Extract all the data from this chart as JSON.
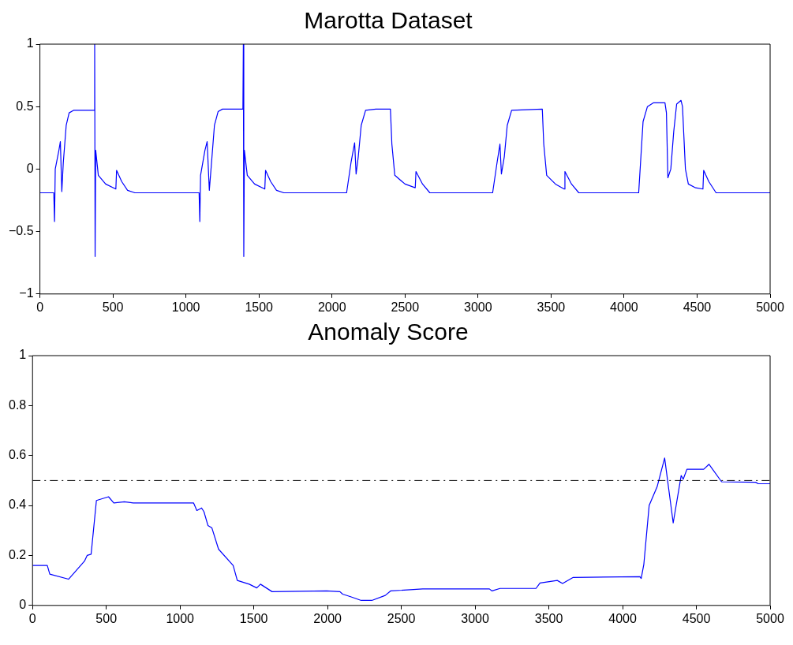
{
  "chart_data": [
    {
      "type": "line",
      "title": "Marotta Dataset",
      "xlim": [
        0,
        5000
      ],
      "xticks": [
        0,
        500,
        1000,
        1500,
        2000,
        2500,
        3000,
        3500,
        4000,
        4500,
        5000
      ],
      "ylim": [
        -1,
        1
      ],
      "yticks": [
        -1,
        -0.5,
        0,
        0.5,
        1
      ],
      "grid": false,
      "legend": false,
      "marker": "none",
      "line_style": "solid",
      "series": [
        {
          "color": "#0000ff",
          "x": [
            0,
            95,
            100,
            105,
            130,
            140,
            150,
            160,
            180,
            200,
            230,
            370,
            375,
            378,
            382,
            400,
            450,
            520,
            525,
            560,
            600,
            650,
            1090,
            1095,
            1100,
            1130,
            1145,
            1160,
            1175,
            1195,
            1220,
            1250,
            1390,
            1393,
            1396,
            1400,
            1420,
            1470,
            1540,
            1545,
            1580,
            1620,
            1670,
            2000,
            2100,
            2130,
            2155,
            2165,
            2180,
            2200,
            2230,
            2300,
            2400,
            2410,
            2430,
            2500,
            2570,
            2575,
            2620,
            2670,
            3100,
            3130,
            3150,
            3160,
            3180,
            3200,
            3230,
            3440,
            3450,
            3470,
            3530,
            3590,
            3595,
            3640,
            3690,
            4100,
            4110,
            4130,
            4160,
            4200,
            4280,
            4290,
            4300,
            4320,
            4340,
            4360,
            4390,
            4400,
            4420,
            4440,
            4490,
            4540,
            4545,
            4580,
            4630,
            5000
          ],
          "values": [
            -0.19,
            -0.19,
            -0.42,
            0.0,
            0.15,
            0.22,
            -0.18,
            0.05,
            0.35,
            0.45,
            0.47,
            0.47,
            1.0,
            -0.7,
            0.15,
            -0.05,
            -0.12,
            -0.16,
            -0.01,
            -0.1,
            -0.17,
            -0.19,
            -0.19,
            -0.42,
            -0.05,
            0.15,
            0.22,
            -0.17,
            0.05,
            0.35,
            0.46,
            0.48,
            0.48,
            1.0,
            -0.7,
            0.15,
            -0.05,
            -0.12,
            -0.16,
            -0.01,
            -0.1,
            -0.17,
            -0.19,
            -0.19,
            -0.19,
            0.05,
            0.21,
            -0.04,
            0.1,
            0.35,
            0.47,
            0.48,
            0.48,
            0.2,
            -0.05,
            -0.12,
            -0.15,
            -0.02,
            -0.12,
            -0.19,
            -0.19,
            0.05,
            0.2,
            -0.04,
            0.1,
            0.35,
            0.47,
            0.48,
            0.2,
            -0.05,
            -0.12,
            -0.16,
            -0.02,
            -0.12,
            -0.19,
            -0.19,
            0.0,
            0.38,
            0.5,
            0.53,
            0.53,
            0.45,
            -0.07,
            0.0,
            0.3,
            0.52,
            0.55,
            0.5,
            0.0,
            -0.12,
            -0.15,
            -0.16,
            -0.01,
            -0.1,
            -0.19,
            -0.19
          ]
        }
      ]
    },
    {
      "type": "line",
      "title": "Anomaly Score",
      "xlim": [
        0,
        5000
      ],
      "xticks": [
        0,
        500,
        1000,
        1500,
        2000,
        2500,
        3000,
        3500,
        4000,
        4500,
        5000
      ],
      "ylim": [
        0,
        1
      ],
      "yticks": [
        0,
        0.2,
        0.4,
        0.6,
        0.8,
        1
      ],
      "grid": false,
      "legend": false,
      "marker": "none",
      "line_style": "solid",
      "ref_lines": [
        {
          "axis": "y",
          "value": 0.5,
          "color": "#000000",
          "line_style": "dashed"
        }
      ],
      "series": [
        {
          "color": "#0000ff",
          "x": [
            0,
            100,
            117,
            244,
            352,
            370,
            397,
            433,
            515,
            551,
            623,
            683,
            1092,
            1114,
            1146,
            1162,
            1189,
            1216,
            1261,
            1360,
            1388,
            1469,
            1520,
            1545,
            1624,
            1994,
            2084,
            2102,
            2156,
            2228,
            2300,
            2391,
            2427,
            2645,
            3097,
            3115,
            3169,
            3413,
            3440,
            3557,
            3593,
            3665,
            4117,
            4126,
            4144,
            4180,
            4234,
            4285,
            4343,
            4397,
            4411,
            4436,
            4550,
            4586,
            4671,
            4902,
            4920,
            5000
          ],
          "values": [
            0.16,
            0.16,
            0.125,
            0.105,
            0.177,
            0.2,
            0.205,
            0.42,
            0.435,
            0.41,
            0.415,
            0.41,
            0.41,
            0.38,
            0.39,
            0.375,
            0.32,
            0.31,
            0.225,
            0.16,
            0.1,
            0.085,
            0.07,
            0.085,
            0.055,
            0.058,
            0.055,
            0.045,
            0.035,
            0.02,
            0.02,
            0.04,
            0.058,
            0.066,
            0.066,
            0.058,
            0.068,
            0.068,
            0.09,
            0.1,
            0.088,
            0.112,
            0.115,
            0.108,
            0.165,
            0.4,
            0.475,
            0.59,
            0.33,
            0.52,
            0.505,
            0.545,
            0.545,
            0.565,
            0.495,
            0.493,
            0.487,
            0.487
          ]
        }
      ]
    }
  ]
}
